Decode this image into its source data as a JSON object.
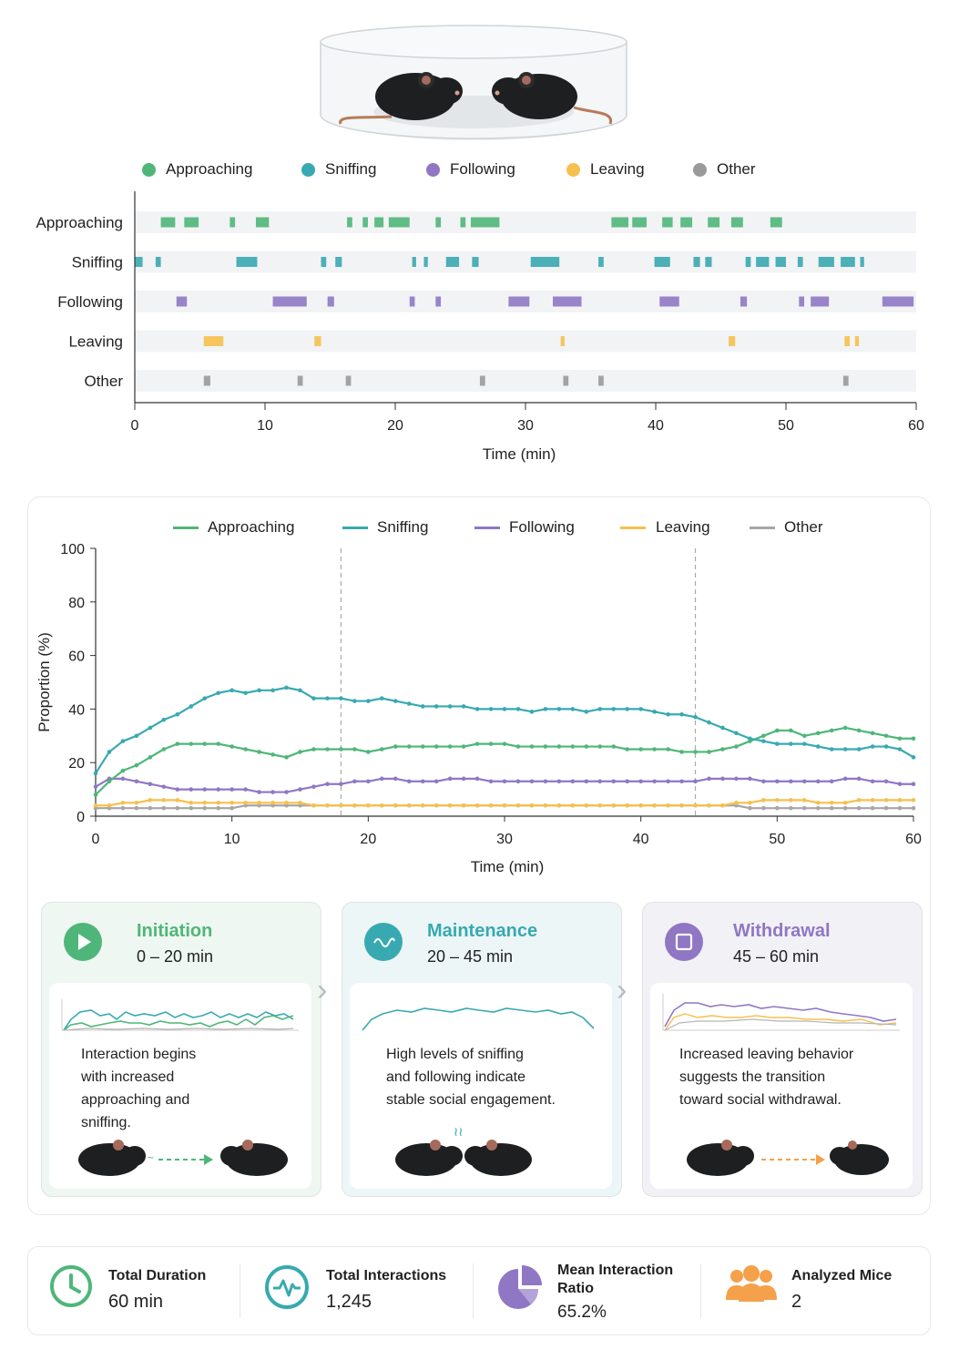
{
  "colors": {
    "approaching": "#4fb679",
    "sniffing": "#38a9b1",
    "following": "#8f77c4",
    "leaving": "#f6c04e",
    "other": "#9a9a9a"
  },
  "legend": {
    "approaching": "Approaching",
    "sniffing": "Sniffing",
    "following": "Following",
    "leaving": "Leaving",
    "other": "Other"
  },
  "ethogram": {
    "xlabel": "Time (min)",
    "ticks": [
      "0",
      "10",
      "20",
      "30",
      "40",
      "50",
      "60"
    ],
    "rows": [
      {
        "name": "Approaching",
        "color": "#4fb679",
        "bouts": [
          [
            2.0,
            3.1
          ],
          [
            3.8,
            4.9
          ],
          [
            7.3,
            7.7
          ],
          [
            9.3,
            10.3
          ],
          [
            16.3,
            16.7
          ],
          [
            17.5,
            17.9
          ],
          [
            18.4,
            19.1
          ],
          [
            19.5,
            21.1
          ],
          [
            23.1,
            23.5
          ],
          [
            25.0,
            25.4
          ],
          [
            25.8,
            28.0
          ],
          [
            36.6,
            37.9
          ],
          [
            38.2,
            39.3
          ],
          [
            40.5,
            41.3
          ],
          [
            41.9,
            42.8
          ],
          [
            44.0,
            44.9
          ],
          [
            45.8,
            46.7
          ],
          [
            48.8,
            49.7
          ]
        ]
      },
      {
        "name": "Sniffing",
        "color": "#38a9b1",
        "bouts": [
          [
            0.0,
            0.6
          ],
          [
            1.6,
            2.0
          ],
          [
            7.8,
            9.4
          ],
          [
            14.3,
            14.7
          ],
          [
            15.4,
            15.9
          ],
          [
            21.3,
            21.6
          ],
          [
            22.2,
            22.5
          ],
          [
            23.9,
            24.9
          ],
          [
            25.9,
            26.4
          ],
          [
            30.4,
            32.6
          ],
          [
            35.6,
            36.0
          ],
          [
            39.9,
            41.1
          ],
          [
            42.9,
            43.4
          ],
          [
            43.8,
            44.3
          ],
          [
            46.9,
            47.3
          ],
          [
            47.7,
            48.7
          ],
          [
            49.2,
            50.0
          ],
          [
            50.9,
            51.3
          ],
          [
            52.5,
            53.7
          ],
          [
            54.2,
            55.3
          ],
          [
            55.7,
            56.0
          ]
        ]
      },
      {
        "name": "Following",
        "color": "#8f77c4",
        "bouts": [
          [
            3.2,
            4.0
          ],
          [
            10.6,
            13.2
          ],
          [
            14.8,
            15.3
          ],
          [
            21.1,
            21.5
          ],
          [
            23.1,
            23.5
          ],
          [
            28.7,
            30.3
          ],
          [
            32.1,
            34.3
          ],
          [
            40.3,
            41.8
          ],
          [
            46.5,
            47.0
          ],
          [
            51.0,
            51.4
          ],
          [
            51.9,
            53.3
          ],
          [
            57.4,
            59.8
          ]
        ]
      },
      {
        "name": "Leaving",
        "color": "#f6c04e",
        "bouts": [
          [
            5.3,
            6.8
          ],
          [
            13.8,
            14.3
          ],
          [
            32.7,
            33.0
          ],
          [
            45.6,
            46.1
          ],
          [
            54.5,
            54.9
          ],
          [
            55.3,
            55.6
          ]
        ]
      },
      {
        "name": "Other",
        "color": "#9a9a9a",
        "bouts": [
          [
            5.3,
            5.8
          ],
          [
            12.5,
            12.9
          ],
          [
            16.2,
            16.6
          ],
          [
            26.5,
            26.9
          ],
          [
            32.9,
            33.3
          ],
          [
            35.6,
            36.0
          ],
          [
            54.4,
            54.8
          ]
        ]
      }
    ]
  },
  "chart_data": {
    "type": "line",
    "xlabel": "Time (min)",
    "ylabel": "Proportion (%)",
    "xlim": [
      0,
      60
    ],
    "ylim": [
      0,
      100
    ],
    "xticks": [
      0,
      10,
      20,
      30,
      40,
      50,
      60
    ],
    "yticks": [
      0,
      20,
      40,
      60,
      80,
      100
    ],
    "phase_boundaries": [
      18,
      44
    ],
    "x": [
      0,
      1,
      2,
      3,
      4,
      5,
      6,
      7,
      8,
      9,
      10,
      11,
      12,
      13,
      14,
      15,
      16,
      17,
      18,
      19,
      20,
      21,
      22,
      23,
      24,
      25,
      26,
      27,
      28,
      29,
      30,
      31,
      32,
      33,
      34,
      35,
      36,
      37,
      38,
      39,
      40,
      41,
      42,
      43,
      44,
      45,
      46,
      47,
      48,
      49,
      50,
      51,
      52,
      53,
      54,
      55,
      56,
      57,
      58,
      59,
      60
    ],
    "series": [
      {
        "name": "Sniffing",
        "color": "#38a9b1",
        "values": [
          16,
          24,
          28,
          30,
          33,
          36,
          38,
          41,
          44,
          46,
          47,
          46,
          47,
          47,
          48,
          47,
          44,
          44,
          44,
          43,
          43,
          44,
          43,
          42,
          41,
          41,
          41,
          41,
          40,
          40,
          40,
          40,
          39,
          40,
          40,
          40,
          39,
          40,
          40,
          40,
          40,
          39,
          38,
          38,
          37,
          35,
          33,
          31,
          29,
          28,
          27,
          27,
          27,
          26,
          25,
          25,
          25,
          26,
          26,
          25,
          22
        ]
      },
      {
        "name": "Approaching",
        "color": "#4fb679",
        "values": [
          8,
          13,
          17,
          19,
          22,
          25,
          27,
          27,
          27,
          27,
          26,
          25,
          24,
          23,
          22,
          24,
          25,
          25,
          25,
          25,
          24,
          25,
          26,
          26,
          26,
          26,
          26,
          26,
          27,
          27,
          27,
          26,
          26,
          26,
          26,
          26,
          26,
          26,
          26,
          25,
          25,
          25,
          25,
          24,
          24,
          24,
          25,
          26,
          28,
          30,
          32,
          32,
          30,
          31,
          32,
          33,
          32,
          31,
          30,
          29,
          29
        ]
      },
      {
        "name": "Following",
        "color": "#8f77c4",
        "values": [
          11,
          14,
          14,
          13,
          12,
          11,
          10,
          10,
          10,
          10,
          10,
          10,
          9,
          9,
          9,
          10,
          11,
          12,
          12,
          13,
          13,
          14,
          14,
          13,
          13,
          13,
          14,
          14,
          14,
          13,
          13,
          13,
          13,
          13,
          13,
          13,
          13,
          13,
          13,
          13,
          13,
          13,
          13,
          13,
          13,
          14,
          14,
          14,
          14,
          13,
          13,
          13,
          13,
          13,
          13,
          14,
          14,
          13,
          13,
          12,
          12
        ]
      },
      {
        "name": "Leaving",
        "color": "#f6c04e",
        "values": [
          4,
          4,
          5,
          5,
          6,
          6,
          6,
          5,
          5,
          5,
          5,
          5,
          5,
          5,
          5,
          5,
          4,
          4,
          4,
          4,
          4,
          4,
          4,
          4,
          4,
          4,
          4,
          4,
          4,
          4,
          4,
          4,
          4,
          4,
          4,
          4,
          4,
          4,
          4,
          4,
          4,
          4,
          4,
          4,
          4,
          4,
          4,
          5,
          5,
          6,
          6,
          6,
          6,
          5,
          5,
          5,
          6,
          6,
          6,
          6,
          6
        ]
      },
      {
        "name": "Other",
        "color": "#a6a6a6",
        "values": [
          3,
          3,
          3,
          3,
          3,
          3,
          3,
          3,
          3,
          3,
          3,
          4,
          4,
          4,
          4,
          4,
          4,
          4,
          4,
          4,
          4,
          4,
          4,
          4,
          4,
          4,
          4,
          4,
          4,
          4,
          4,
          4,
          4,
          4,
          4,
          4,
          4,
          4,
          4,
          4,
          4,
          4,
          4,
          4,
          4,
          4,
          4,
          4,
          3,
          3,
          3,
          3,
          3,
          3,
          3,
          3,
          3,
          3,
          3,
          3,
          3
        ]
      }
    ]
  },
  "phases": [
    {
      "title": "Initiation",
      "range": "0 – 20 min",
      "color": "#4fb679",
      "bg": "#eef7f1",
      "desc": [
        "Interaction begins",
        "with increased",
        "approaching and",
        "sniffing."
      ]
    },
    {
      "title": "Maintenance",
      "range": "20 – 45 min",
      "color": "#38a9b1",
      "bg": "#ecf6f7",
      "desc": [
        "High levels of sniffing",
        "and following indicate",
        "stable social engagement."
      ]
    },
    {
      "title": "Withdrawal",
      "range": "45 – 60 min",
      "color": "#8f77c4",
      "bg": "#f2f1f6",
      "desc": [
        "Increased leaving behavior",
        "suggests the transition",
        "toward social withdrawal."
      ]
    }
  ],
  "stats": [
    {
      "label": "Total Duration",
      "value": "60 min",
      "icon": "clock-icon",
      "color": "#4fb679"
    },
    {
      "label": "Total Interactions",
      "value": "1,245",
      "icon": "pulse-icon",
      "color": "#38a9b1"
    },
    {
      "label_line1": "Mean Interaction",
      "label_line2": "Ratio",
      "value": "65.2%",
      "icon": "pie-chart-icon",
      "color": "#8f77c4"
    },
    {
      "label": "Analyzed Mice",
      "value": "2",
      "icon": "group-icon",
      "color": "#f5a04a"
    }
  ]
}
